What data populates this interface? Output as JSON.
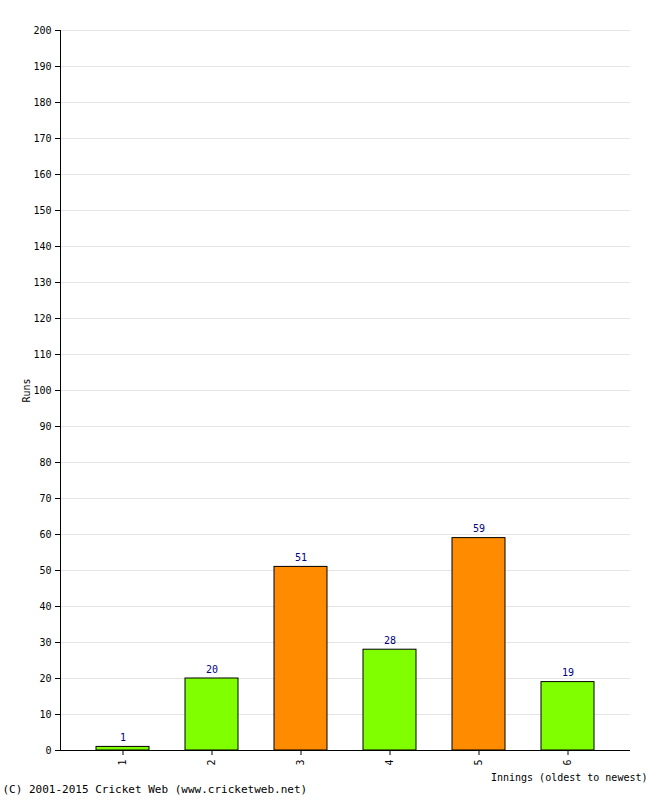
{
  "chart_data": {
    "type": "bar",
    "categories": [
      "1",
      "2",
      "3",
      "4",
      "5",
      "6"
    ],
    "values": [
      1,
      20,
      51,
      28,
      59,
      19
    ],
    "colors": [
      "#80ff00",
      "#80ff00",
      "#ff8c00",
      "#80ff00",
      "#ff8c00",
      "#80ff00"
    ],
    "x_label": "Innings (oldest to newest)",
    "y_label": "Runs",
    "caption": "(C) 2001-2015 Cricket Web (www.cricketweb.net)",
    "ylim": [
      0,
      200
    ],
    "yticks": [
      0,
      10,
      20,
      30,
      40,
      50,
      60,
      70,
      80,
      90,
      100,
      110,
      120,
      130,
      140,
      150,
      160,
      170,
      180,
      190,
      200
    ],
    "grid": true,
    "data_labels": true
  }
}
